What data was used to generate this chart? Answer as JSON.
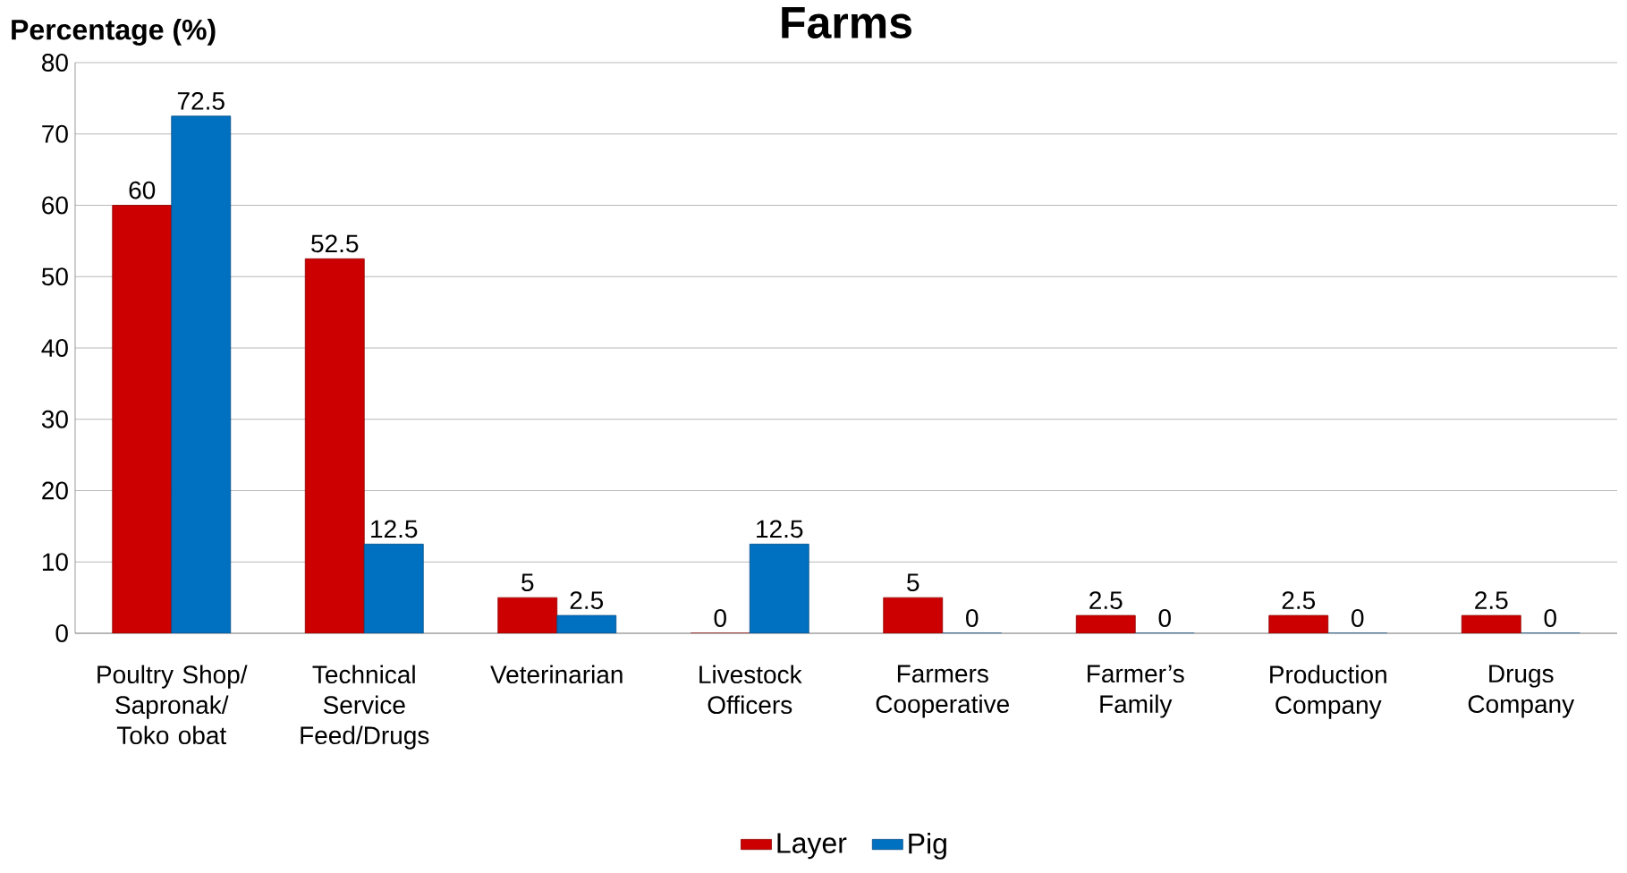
{
  "chart_data": {
    "type": "bar",
    "title": "Farms",
    "ylabel": "Percentage  (%)",
    "categories": [
      "Poultry Shop/ Sapronak/ Toko obat",
      "Technical Service Feed/Drugs",
      "Veterinarian",
      "Livestock Officers",
      "Farmers Cooperative",
      "Farmer’s Family",
      "Production Company",
      "Drugs Company"
    ],
    "series": [
      {
        "name": "Layer",
        "color": "#cc0000",
        "values": [
          60,
          52.5,
          5,
          0,
          5,
          2.5,
          2.5,
          2.5
        ]
      },
      {
        "name": "Pig",
        "color": "#0070c0",
        "values": [
          72.5,
          12.5,
          2.5,
          12.5,
          0,
          0,
          0,
          0
        ]
      }
    ],
    "ylim": [
      0,
      80
    ],
    "yticks": [
      0,
      10,
      20,
      30,
      40,
      50,
      60,
      70,
      80
    ],
    "grid": "y",
    "legend": "bottom",
    "data_labels": true
  }
}
